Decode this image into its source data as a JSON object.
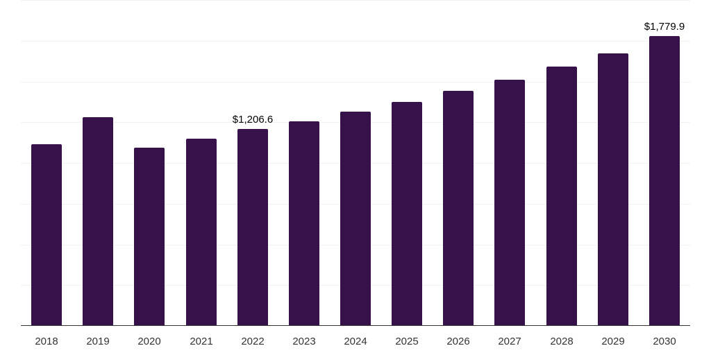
{
  "chart_data": {
    "type": "bar",
    "title": "",
    "xlabel": "",
    "ylabel": "",
    "categories": [
      "2018",
      "2019",
      "2020",
      "2021",
      "2022",
      "2023",
      "2024",
      "2025",
      "2026",
      "2027",
      "2028",
      "2029",
      "2030"
    ],
    "values": [
      1115.7,
      1281.7,
      1094.4,
      1149.7,
      1206.6,
      1256.0,
      1316.0,
      1375.0,
      1443.0,
      1512.0,
      1593.0,
      1673.0,
      1779.9
    ],
    "data_labels": {
      "2022": "$1,206.6",
      "2030": "$1,779.9"
    },
    "ylim": [
      0,
      2000
    ],
    "ytick_step": 250,
    "grid": true,
    "legend": null,
    "colors": {
      "bar": "#371149",
      "grid": "#f2f2f2",
      "axis": "#333333"
    }
  },
  "labels": {
    "label_2022": "$1,206.6",
    "label_2030": "$1,779.9"
  }
}
